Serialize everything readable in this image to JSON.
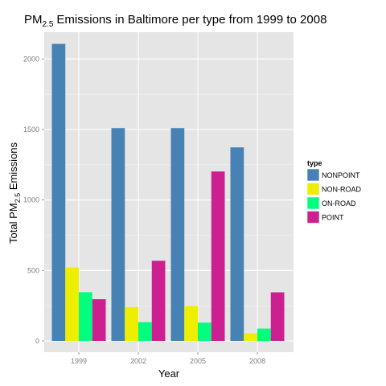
{
  "chart_data": {
    "type": "bar",
    "title": "Emissions in Baltimore per type from 1999 to 2008",
    "title_prefix": "PM",
    "title_sub": "2.5",
    "xlabel": "Year",
    "ylabel_prefix": "Total PM",
    "ylabel_sub": "2.5",
    "ylabel_suffix": " Emissions",
    "categories": [
      "1999",
      "2002",
      "2005",
      "2008"
    ],
    "ylim": [
      0,
      2200
    ],
    "yticks": [
      0,
      500,
      1000,
      1500,
      2000
    ],
    "legend": {
      "title": "type",
      "position": "right"
    },
    "series": [
      {
        "name": "NONPOINT",
        "color": "#4682b4",
        "values": [
          2107,
          1510,
          1510,
          1373
        ]
      },
      {
        "name": "NON-ROAD",
        "color": "#eeee00",
        "values": [
          522,
          241,
          249,
          55
        ]
      },
      {
        "name": "ON-ROAD",
        "color": "#00ff7f",
        "values": [
          346,
          134,
          130,
          88
        ]
      },
      {
        "name": "POINT",
        "color": "#cd2090",
        "values": [
          296,
          569,
          1202,
          345
        ]
      }
    ]
  }
}
